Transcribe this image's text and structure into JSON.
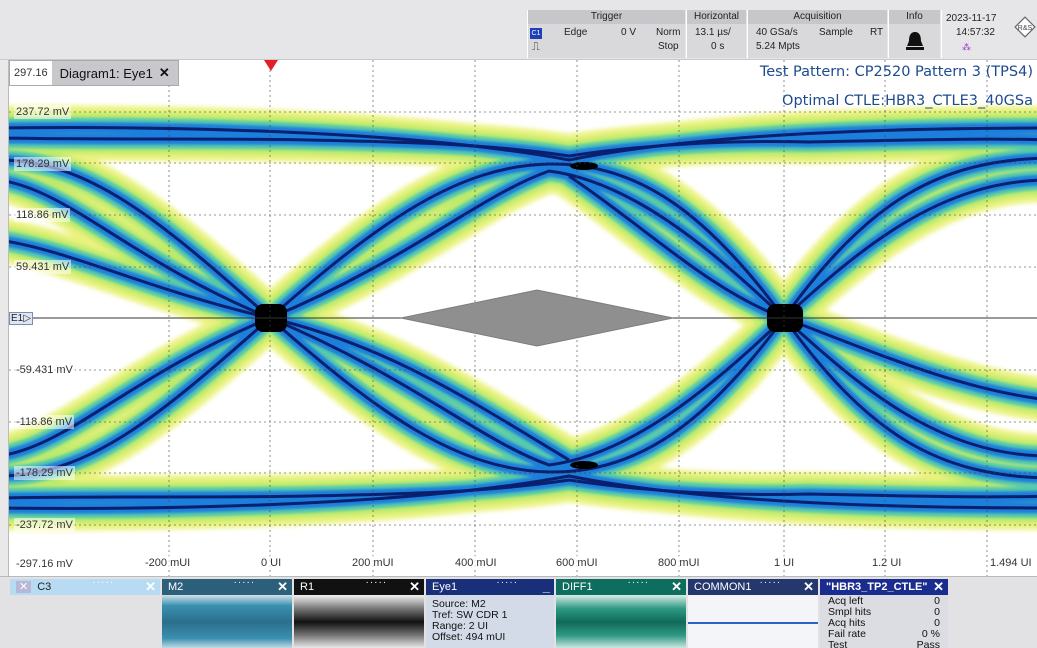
{
  "toolbar": {
    "trigger": {
      "header": "Trigger",
      "source": "C1",
      "type": "Edge",
      "level": "0 V",
      "mode": "Norm",
      "state": "Stop"
    },
    "horizontal": {
      "header": "Horizontal",
      "scale": "13.1 µs/",
      "position": "0 s"
    },
    "acquisition": {
      "header": "Acquisition",
      "rate": "40 GSa/s",
      "mode": "Sample",
      "rt": "RT",
      "points": "5.24 Mpts"
    },
    "info": {
      "header": "Info"
    },
    "datetime": {
      "date": "2023-11-17",
      "time": "14:57:32"
    },
    "logo": "R&S"
  },
  "diagram": {
    "tab_label": "Diagram1: Eye1",
    "tab_close": "✕",
    "y_max_label": "297.16",
    "annotations": [
      "Test Pattern: CP2520 Pattern 3 (TPS4)",
      "Optimal CTLE:HBR3_CTLE3_40GSa"
    ],
    "channel_marker": "E1",
    "y_labels": [
      "237.72 mV",
      "178.29 mV",
      "118.86 mV",
      "59.431 mV",
      "-59.431 mV",
      "-118.86 mV",
      "-178.29 mV",
      "-237.72 mV",
      "-297.16 mV"
    ],
    "x_labels": [
      "-200 mUI",
      "0 UI",
      "200 mUI",
      "400 mUI",
      "600 mUI",
      "800 mUI",
      "1 UI",
      "1.2 UI",
      "1.494 UI"
    ],
    "colors": {
      "eye_core": "#0a1f6e",
      "eye_mid": "#1e78d6",
      "eye_halo": "#e6f56a",
      "mask": "#8f8f8f",
      "trigger": "#e21f26"
    }
  },
  "signal_bar": {
    "c3": {
      "label": "C3",
      "close": "✕"
    },
    "m2": {
      "label": "M2",
      "close": "✕"
    },
    "r1": {
      "label": "R1",
      "close": "✕"
    },
    "eye1": {
      "label": "Eye1",
      "lines": [
        "Source: M2",
        "Tref:    SW CDR 1",
        "Range:  2 UI",
        "Offset:  494 mUI"
      ]
    },
    "diff1": {
      "label": "DIFF1",
      "close": "✕"
    },
    "common1": {
      "label": "COMMON1",
      "close": "✕"
    },
    "mask_test": {
      "label": "\"HBR3_TP2_CTLE\"",
      "close": "✕",
      "rows": [
        {
          "name": "Acq left",
          "value": "0"
        },
        {
          "name": "Smpl hits",
          "value": "0"
        },
        {
          "name": "Acq hits",
          "value": "0"
        },
        {
          "name": "Fail rate",
          "value": "0 %"
        },
        {
          "name": "Test",
          "value": "Pass"
        }
      ]
    }
  }
}
